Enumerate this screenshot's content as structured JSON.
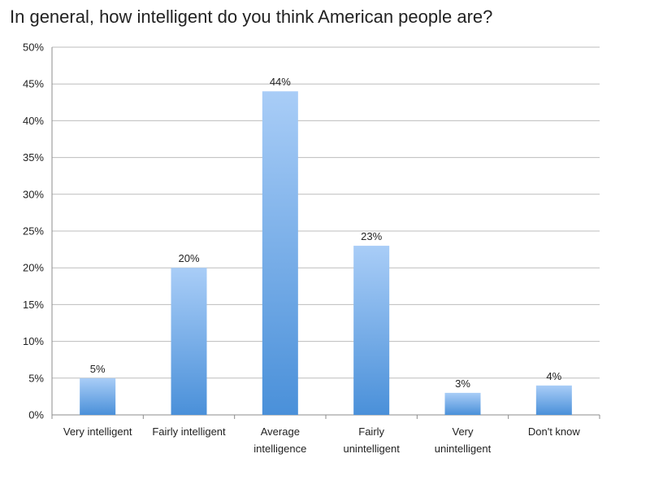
{
  "chart_data": {
    "type": "bar",
    "title": "In general, how intelligent do you think American people are?",
    "categories": [
      [
        "Very intelligent"
      ],
      [
        "Fairly intelligent"
      ],
      [
        "Average",
        "intelligence"
      ],
      [
        "Fairly",
        "unintelligent"
      ],
      [
        "Very",
        "unintelligent"
      ],
      [
        "Don't know"
      ]
    ],
    "values": [
      5,
      20,
      44,
      23,
      3,
      4
    ],
    "data_labels": [
      "5%",
      "20%",
      "44%",
      "23%",
      "3%",
      "4%"
    ],
    "ylim": [
      0,
      50
    ],
    "yticks": [
      0,
      5,
      10,
      15,
      20,
      25,
      30,
      35,
      40,
      45,
      50
    ],
    "ytick_labels": [
      "0%",
      "5%",
      "10%",
      "15%",
      "20%",
      "25%",
      "30%",
      "35%",
      "40%",
      "45%",
      "50%"
    ],
    "grid": true,
    "colors": {
      "bar_top": "#a9cdf7",
      "bar_bottom": "#4a90d9",
      "grid": "#bdbdbd"
    }
  }
}
